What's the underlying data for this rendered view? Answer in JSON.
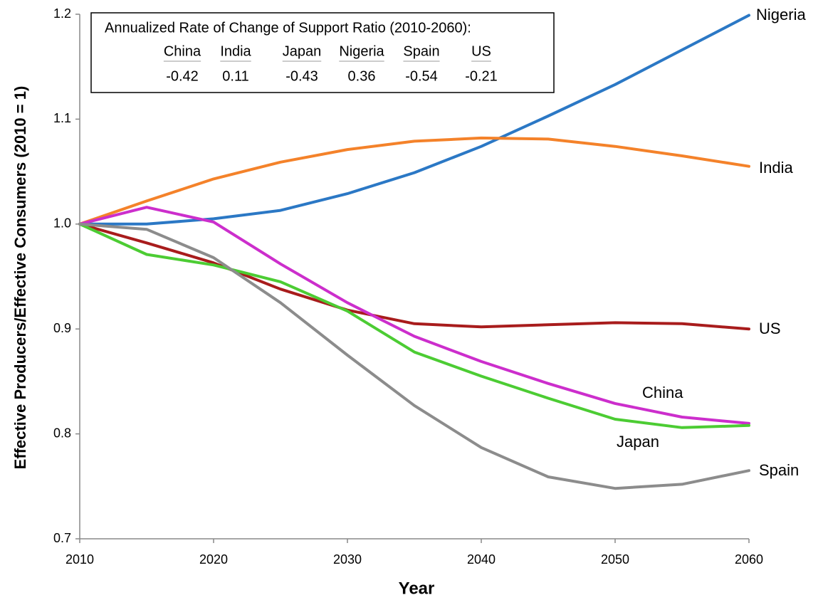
{
  "chart_data": {
    "type": "line",
    "xlabel": "Year",
    "ylabel": "Effective Producers/Effective Consumers (2010 = 1)",
    "x": [
      2010,
      2015,
      2020,
      2025,
      2030,
      2035,
      2040,
      2045,
      2050,
      2055,
      2060
    ],
    "xlim": [
      2010,
      2060
    ],
    "xticks": [
      2010,
      2020,
      2030,
      2040,
      2050,
      2060
    ],
    "ylim": [
      0.7,
      1.2
    ],
    "yticks": [
      0.7,
      0.8,
      0.9,
      {
        "value": 1,
        "label": "1.0"
      },
      1.1,
      1.2
    ],
    "grid": false,
    "series": [
      {
        "name": "Nigeria",
        "color": "#2b78c5",
        "values": [
          1.0,
          1.0,
          1.005,
          1.013,
          1.029,
          1.049,
          1.074,
          1.103,
          1.133,
          1.166,
          1.199
        ]
      },
      {
        "name": "India",
        "color": "#f4822a",
        "values": [
          1.0,
          1.022,
          1.043,
          1.059,
          1.071,
          1.079,
          1.082,
          1.081,
          1.074,
          1.065,
          1.055
        ]
      },
      {
        "name": "US",
        "color": "#a81c1c",
        "values": [
          1.0,
          0.982,
          0.963,
          0.938,
          0.918,
          0.905,
          0.902,
          0.904,
          0.906,
          0.905,
          0.9
        ]
      },
      {
        "name": "China",
        "color": "#cc2ecc",
        "values": [
          1.0,
          1.016,
          1.002,
          0.962,
          0.925,
          0.893,
          0.869,
          0.848,
          0.829,
          0.816,
          0.81
        ]
      },
      {
        "name": "Japan",
        "color": "#4ccc33",
        "values": [
          1.0,
          0.971,
          0.961,
          0.945,
          0.917,
          0.878,
          0.855,
          0.834,
          0.814,
          0.806,
          0.808
        ]
      },
      {
        "name": "Spain",
        "color": "#8c8c8c",
        "values": [
          1.0,
          0.995,
          0.968,
          0.925,
          0.875,
          0.827,
          0.787,
          0.759,
          0.748,
          0.752,
          0.765
        ]
      }
    ],
    "annotation": {
      "title": "Annualized Rate of Change of Support Ratio (2010-2060):",
      "columns": [
        "China",
        "India",
        "Japan",
        "Nigeria",
        "Spain",
        "US"
      ],
      "values": [
        -0.42,
        0.11,
        -0.43,
        0.36,
        -0.54,
        -0.21
      ]
    }
  }
}
